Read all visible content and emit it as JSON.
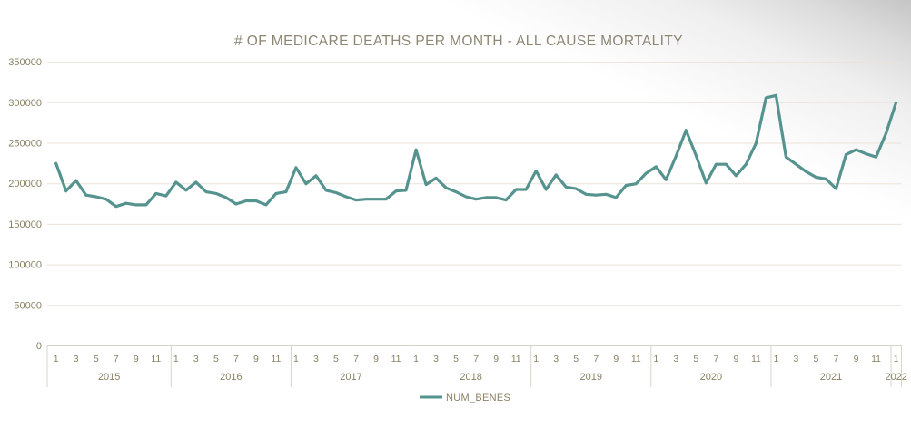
{
  "chart_data": {
    "type": "line",
    "title": "# OF MEDICARE DEATHS PER MONTH - ALL CAUSE MORTALITY",
    "xlabel": "",
    "ylabel": "",
    "ylim": [
      0,
      350000
    ],
    "ytick_step": 50000,
    "ytick_labels": [
      "0",
      "50000",
      "100000",
      "150000",
      "200000",
      "250000",
      "300000",
      "350000"
    ],
    "grid": true,
    "legend_position": "bottom-center",
    "x_years": [
      {
        "year": "2015",
        "n_months": 12,
        "month_labels": [
          "1",
          "3",
          "5",
          "7",
          "9",
          "11"
        ]
      },
      {
        "year": "2016",
        "n_months": 12,
        "month_labels": [
          "1",
          "3",
          "5",
          "7",
          "9",
          "11"
        ]
      },
      {
        "year": "2017",
        "n_months": 12,
        "month_labels": [
          "1",
          "3",
          "5",
          "7",
          "9",
          "11"
        ]
      },
      {
        "year": "2018",
        "n_months": 12,
        "month_labels": [
          "1",
          "3",
          "5",
          "7",
          "9",
          "11"
        ]
      },
      {
        "year": "2019",
        "n_months": 12,
        "month_labels": [
          "1",
          "3",
          "5",
          "7",
          "9",
          "11"
        ]
      },
      {
        "year": "2020",
        "n_months": 12,
        "month_labels": [
          "1",
          "3",
          "5",
          "7",
          "9",
          "11"
        ]
      },
      {
        "year": "2021",
        "n_months": 12,
        "month_labels": [
          "1",
          "3",
          "5",
          "7",
          "9",
          "11"
        ]
      },
      {
        "year": "2022",
        "n_months": 1,
        "month_labels": [
          "1"
        ]
      }
    ],
    "series": [
      {
        "name": "NUM_BENES",
        "color": "#55938F",
        "values": [
          225000,
          191000,
          204000,
          186000,
          184000,
          181000,
          172000,
          176000,
          174000,
          174000,
          188000,
          185000,
          202000,
          192000,
          202000,
          190000,
          188000,
          183000,
          175000,
          179000,
          179000,
          174000,
          188000,
          190000,
          220000,
          200000,
          210000,
          192000,
          189000,
          184000,
          180000,
          181000,
          181000,
          181000,
          191000,
          192000,
          242000,
          199000,
          207000,
          195000,
          190000,
          184000,
          181000,
          183000,
          183000,
          180000,
          193000,
          193000,
          216000,
          193000,
          211000,
          196000,
          194000,
          187000,
          186000,
          187000,
          183000,
          198000,
          200000,
          213000,
          221000,
          205000,
          234000,
          266000,
          235000,
          201000,
          224000,
          224000,
          210000,
          224000,
          250000,
          306000,
          309000,
          233000,
          224000,
          215000,
          208000,
          206000,
          194000,
          236000,
          242000,
          237000,
          233000,
          262000,
          300000
        ]
      }
    ]
  },
  "colors": {
    "title": "#8D8672",
    "tick_label": "#8A8164",
    "gridline": "#E9E4D7",
    "separator": "#D8D4C8",
    "series": "#55938F",
    "background_corner": "#C5C5C5"
  }
}
